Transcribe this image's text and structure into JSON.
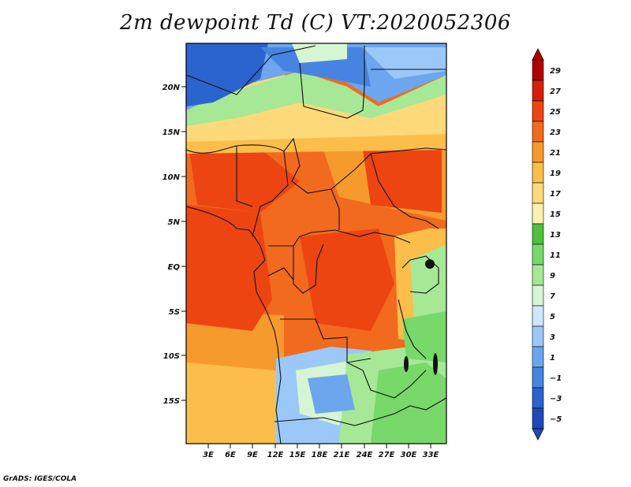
{
  "title": "2m dewpoint Td (C) VT:2020052306",
  "footer": "GrADS: IGES/COLA",
  "map": {
    "lat_labels": [
      "20N",
      "15N",
      "10N",
      "5N",
      "EQ",
      "5S",
      "10S",
      "15S"
    ],
    "lon_labels": [
      "3E",
      "6E",
      "9E",
      "12E",
      "15E",
      "18E",
      "21E",
      "24E",
      "27E",
      "30E",
      "33E"
    ]
  },
  "colorbar": {
    "levels": [
      "29",
      "27",
      "25",
      "23",
      "21",
      "19",
      "17",
      "15",
      "13",
      "11",
      "9",
      "7",
      "5",
      "3",
      "1",
      "−1",
      "−3",
      "−5"
    ],
    "colors": [
      "#b00000",
      "#d61e0a",
      "#ec4512",
      "#f26a1e",
      "#f79a2e",
      "#fbbe4a",
      "#fdd97a",
      "#fff0b0",
      "#4fbf3f",
      "#78d86a",
      "#a6e896",
      "#d6f5d2",
      "#cfe6ff",
      "#9cc8f8",
      "#6ba6ef",
      "#4784e2",
      "#2b63cf",
      "#1f49b8"
    ]
  }
}
